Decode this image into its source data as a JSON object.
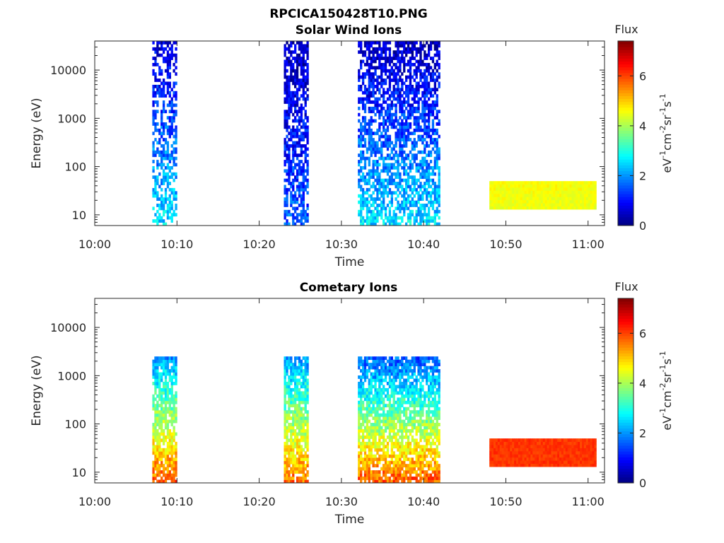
{
  "figure": {
    "filename_title": "RPCICA150428T10.PNG"
  },
  "chart_data": [
    {
      "type": "heatmap",
      "title": "Solar Wind Ions",
      "xlabel": "Time",
      "ylabel": "Energy (eV)",
      "xlim": [
        "10:00",
        "11:02"
      ],
      "ylim": [
        6,
        40000
      ],
      "yscale": "log",
      "xticks": [
        "10:00",
        "10:10",
        "10:20",
        "10:30",
        "10:40",
        "10:50",
        "11:00"
      ],
      "yticks": [
        "10",
        "100",
        "1000",
        "10000"
      ],
      "colorbar": {
        "label": "eV-1cm-2sr-1s-1",
        "header": "Flux",
        "range": [
          0,
          7.4
        ],
        "ticks": [
          "0",
          "2",
          "4",
          "6"
        ],
        "colormap": "jet"
      },
      "blocks": [
        {
          "t_start": "10:07",
          "t_end": "10:10",
          "e_min": 6,
          "e_max": 40000,
          "flux_low_energy": 2.6,
          "flux_high_energy": 0.6,
          "fill": 0.55
        },
        {
          "t_start": "10:23",
          "t_end": "10:26",
          "e_min": 6,
          "e_max": 40000,
          "flux_low_energy": 1.6,
          "flux_high_energy": 0.4,
          "fill": 0.7
        },
        {
          "t_start": "10:32",
          "t_end": "10:42",
          "e_min": 6,
          "e_max": 40000,
          "flux_low_energy": 2.6,
          "flux_high_energy": 0.4,
          "fill": 0.65
        },
        {
          "t_start": "10:48",
          "t_end": "11:01",
          "e_min": 13,
          "e_max": 50,
          "flux_low_energy": 4.5,
          "flux_high_energy": 4.6,
          "fill": 1.0
        }
      ]
    },
    {
      "type": "heatmap",
      "title": "Cometary Ions",
      "xlabel": "Time",
      "ylabel": "Energy (eV)",
      "xlim": [
        "10:00",
        "11:02"
      ],
      "ylim": [
        6,
        40000
      ],
      "yscale": "log",
      "xticks": [
        "10:00",
        "10:10",
        "10:20",
        "10:30",
        "10:40",
        "10:50",
        "11:00"
      ],
      "yticks": [
        "10",
        "100",
        "1000",
        "10000"
      ],
      "colorbar": {
        "label": "eV-1cm-2sr-1s-1",
        "header": "Flux",
        "range": [
          0,
          7.4
        ],
        "ticks": [
          "0",
          "2",
          "4",
          "6"
        ],
        "colormap": "jet"
      },
      "blocks": [
        {
          "t_start": "10:07",
          "t_end": "10:10",
          "e_min": 6,
          "e_max": 2500,
          "flux_low_energy": 5.9,
          "flux_high_energy": 2.0,
          "fill": 0.8
        },
        {
          "t_start": "10:23",
          "t_end": "10:26",
          "e_min": 6,
          "e_max": 2500,
          "flux_low_energy": 5.7,
          "flux_high_energy": 2.0,
          "fill": 0.85
        },
        {
          "t_start": "10:32",
          "t_end": "10:42",
          "e_min": 6,
          "e_max": 2500,
          "flux_low_energy": 5.9,
          "flux_high_energy": 1.5,
          "fill": 0.8
        },
        {
          "t_start": "10:48",
          "t_end": "11:01",
          "e_min": 13,
          "e_max": 50,
          "flux_low_energy": 6.1,
          "flux_high_energy": 6.1,
          "fill": 1.0
        }
      ]
    }
  ]
}
